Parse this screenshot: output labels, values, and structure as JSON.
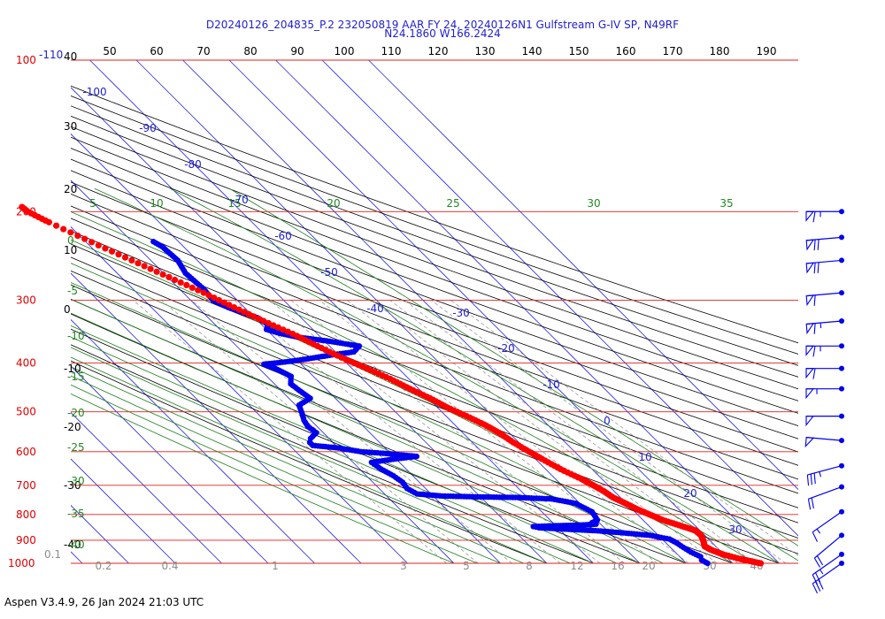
{
  "title_line1": "D20240126_204835_P.2 232050819 AAR FY 24, 20240126N1 Gulfstream G-IV SP, N49RF",
  "title_line2": "N24.1860 W166.2424",
  "footer": "Aspen V3.4.9, 26 Jan 2024  21:03 UTC",
  "chart_data": {
    "type": "skew-t",
    "pressure_labels": [
      {
        "p": 100,
        "label": "100"
      },
      {
        "p": 200,
        "label": "200"
      },
      {
        "p": 300,
        "label": "300"
      },
      {
        "p": 400,
        "label": "400"
      },
      {
        "p": 500,
        "label": "500"
      },
      {
        "p": 600,
        "label": "600"
      },
      {
        "p": 700,
        "label": "700"
      },
      {
        "p": 800,
        "label": "800"
      },
      {
        "p": 900,
        "label": "900"
      },
      {
        "p": 1000,
        "label": "1000"
      }
    ],
    "top_left_label": "-110",
    "theta_labels": [
      "50",
      "60",
      "70",
      "80",
      "90",
      "100",
      "110",
      "120",
      "130",
      "140",
      "150",
      "160",
      "170",
      "180",
      "190"
    ],
    "left_axis_labels": [
      "40",
      "30",
      "20",
      "10",
      "0",
      "-10",
      "-20",
      "-30",
      "-40"
    ],
    "left_green_labels": [
      "0",
      "-5",
      "-10",
      "-15",
      "-20",
      "-25",
      "-30",
      "-35",
      "-40"
    ],
    "bottom_left_label": "0.1",
    "mixing_labels": [
      "0.2",
      "0.4",
      "1",
      "3",
      "5",
      "8",
      "12",
      "16",
      "20",
      "30",
      "40"
    ],
    "green_top_labels": [
      "5",
      "10",
      "15",
      "20",
      "25",
      "30",
      "35"
    ],
    "isotherm_labels": [
      "-100",
      "-90",
      "-80",
      "-70",
      "-60",
      "-50",
      "-40",
      "-30",
      "-20",
      "-10",
      "0",
      "10",
      "20",
      "30"
    ],
    "temperature": [
      {
        "p": 1000,
        "t": 26.0
      },
      {
        "p": 990,
        "t": 24.2
      },
      {
        "p": 980,
        "t": 22.5
      },
      {
        "p": 960,
        "t": 19.8
      },
      {
        "p": 940,
        "t": 18.2
      },
      {
        "p": 925,
        "t": 17.6
      },
      {
        "p": 900,
        "t": 18.6
      },
      {
        "p": 880,
        "t": 19.2
      },
      {
        "p": 860,
        "t": 19.0
      },
      {
        "p": 840,
        "t": 16.6
      },
      {
        "p": 820,
        "t": 14.2
      },
      {
        "p": 800,
        "t": 12.6
      },
      {
        "p": 780,
        "t": 11.0
      },
      {
        "p": 760,
        "t": 9.8
      },
      {
        "p": 740,
        "t": 8.4
      },
      {
        "p": 720,
        "t": 7.8
      },
      {
        "p": 700,
        "t": 6.8
      },
      {
        "p": 680,
        "t": 5.6
      },
      {
        "p": 650,
        "t": 3.2
      },
      {
        "p": 620,
        "t": 1.4
      },
      {
        "p": 600,
        "t": 0.2
      },
      {
        "p": 575,
        "t": -1.2
      },
      {
        "p": 550,
        "t": -2.2
      },
      {
        "p": 530,
        "t": -3.6
      },
      {
        "p": 510,
        "t": -5.6
      },
      {
        "p": 490,
        "t": -7.9
      },
      {
        "p": 470,
        "t": -9.6
      },
      {
        "p": 450,
        "t": -11.9
      },
      {
        "p": 430,
        "t": -14.0
      },
      {
        "p": 410,
        "t": -16.8
      },
      {
        "p": 390,
        "t": -19.9
      },
      {
        "p": 370,
        "t": -22.6
      },
      {
        "p": 350,
        "t": -25.3
      },
      {
        "p": 330,
        "t": -28.8
      },
      {
        "p": 310,
        "t": -32.2
      },
      {
        "p": 290,
        "t": -35.6
      },
      {
        "p": 270,
        "t": -39.7
      },
      {
        "p": 250,
        "t": -44.1
      },
      {
        "p": 230,
        "t": -48.8
      },
      {
        "p": 210,
        "t": -53.7
      },
      {
        "p": 200,
        "t": -56.0
      },
      {
        "p": 195,
        "t": -56.3
      }
    ],
    "dewpoint": [
      {
        "p": 1000,
        "td": 14.6
      },
      {
        "p": 985,
        "td": 14.0
      },
      {
        "p": 970,
        "td": 14.5
      },
      {
        "p": 950,
        "td": 13.4
      },
      {
        "p": 930,
        "td": 12.8
      },
      {
        "p": 910,
        "td": 12.3
      },
      {
        "p": 895,
        "td": 11.6
      },
      {
        "p": 880,
        "td": 8.2
      },
      {
        "p": 870,
        "td": 3.0
      },
      {
        "p": 862,
        "td": -2.0
      },
      {
        "p": 855,
        "td": -9.0
      },
      {
        "p": 850,
        "td": -14.0
      },
      {
        "p": 845,
        "td": -15.0
      },
      {
        "p": 842,
        "td": -10.0
      },
      {
        "p": 840,
        "td": -5.0
      },
      {
        "p": 836,
        "td": -1.0
      },
      {
        "p": 830,
        "td": -1.5
      },
      {
        "p": 820,
        "td": 0.2
      },
      {
        "p": 790,
        "td": 0.8
      },
      {
        "p": 760,
        "td": -1.0
      },
      {
        "p": 745,
        "td": -5.0
      },
      {
        "p": 740,
        "td": -12.0
      },
      {
        "p": 738,
        "td": -20.0
      },
      {
        "p": 735,
        "td": -28.0
      },
      {
        "p": 728,
        "td": -33.0
      },
      {
        "p": 710,
        "td": -34.0
      },
      {
        "p": 690,
        "td": -33.6
      },
      {
        "p": 670,
        "td": -34.2
      },
      {
        "p": 650,
        "td": -35.4
      },
      {
        "p": 630,
        "td": -36.0
      },
      {
        "p": 620,
        "td": -30.0
      },
      {
        "p": 613,
        "td": -25.0
      },
      {
        "p": 605,
        "td": -31.0
      },
      {
        "p": 600,
        "td": -36.0
      },
      {
        "p": 590,
        "td": -40.0
      },
      {
        "p": 583,
        "td": -45.0
      },
      {
        "p": 575,
        "td": -45.0
      },
      {
        "p": 565,
        "td": -44.0
      },
      {
        "p": 550,
        "td": -41.5
      },
      {
        "p": 535,
        "td": -42.0
      },
      {
        "p": 520,
        "td": -41.5
      },
      {
        "p": 505,
        "td": -40.5
      },
      {
        "p": 485,
        "td": -39.3
      },
      {
        "p": 470,
        "td": -35.4
      },
      {
        "p": 455,
        "td": -36.0
      },
      {
        "p": 440,
        "td": -36.5
      },
      {
        "p": 425,
        "td": -34.8
      },
      {
        "p": 410,
        "td": -36.5
      },
      {
        "p": 402,
        "td": -38.0
      },
      {
        "p": 398,
        "td": -33.0
      },
      {
        "p": 393,
        "td": -28.0
      },
      {
        "p": 386,
        "td": -22.0
      },
      {
        "p": 380,
        "td": -16.0
      },
      {
        "p": 370,
        "td": -13.6
      },
      {
        "p": 362,
        "td": -19.0
      },
      {
        "p": 355,
        "td": -25.0
      },
      {
        "p": 349,
        "td": -28.0
      },
      {
        "p": 343,
        "td": -30.0
      },
      {
        "p": 335,
        "td": -28.5
      },
      {
        "p": 325,
        "td": -29.4
      },
      {
        "p": 310,
        "td": -33.5
      },
      {
        "p": 300,
        "td": -35.2
      },
      {
        "p": 285,
        "td": -34.8
      },
      {
        "p": 265,
        "td": -35.3
      },
      {
        "p": 250,
        "td": -34.2
      },
      {
        "p": 235,
        "td": -34.6
      },
      {
        "p": 228,
        "td": -35.6
      }
    ],
    "wind_barbs": [
      {
        "p": 200,
        "speed": 65,
        "dir": 270
      },
      {
        "p": 225,
        "speed": 70,
        "dir": 265
      },
      {
        "p": 250,
        "speed": 70,
        "dir": 265
      },
      {
        "p": 290,
        "speed": 60,
        "dir": 265
      },
      {
        "p": 330,
        "speed": 65,
        "dir": 265
      },
      {
        "p": 370,
        "speed": 65,
        "dir": 270
      },
      {
        "p": 410,
        "speed": 60,
        "dir": 270
      },
      {
        "p": 450,
        "speed": 55,
        "dir": 270
      },
      {
        "p": 510,
        "speed": 50,
        "dir": 270
      },
      {
        "p": 570,
        "speed": 50,
        "dir": 275
      },
      {
        "p": 640,
        "speed": 35,
        "dir": 255
      },
      {
        "p": 705,
        "speed": 20,
        "dir": 250
      },
      {
        "p": 790,
        "speed": 15,
        "dir": 235
      },
      {
        "p": 880,
        "speed": 20,
        "dir": 230
      },
      {
        "p": 960,
        "speed": 25,
        "dir": 235
      },
      {
        "p": 1000,
        "speed": 30,
        "dir": 235
      }
    ]
  }
}
